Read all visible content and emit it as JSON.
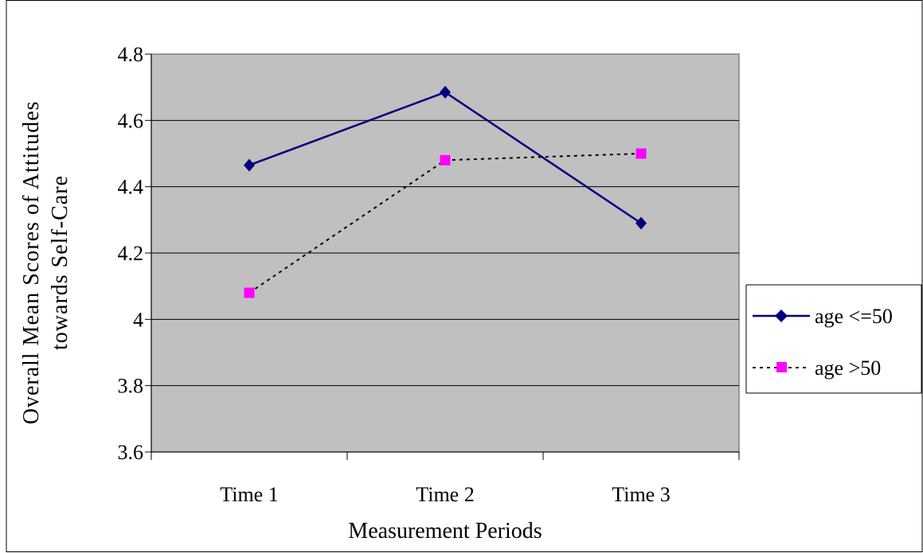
{
  "chart_data": {
    "type": "line",
    "title": "",
    "xlabel": "Measurement Periods",
    "ylabel_lines": [
      "Overall Mean Scores of Attitudes",
      "towards Self-Care"
    ],
    "categories": [
      "Time 1",
      "Time 2",
      "Time 3"
    ],
    "ylim": [
      3.6,
      4.8
    ],
    "yticks": [
      3.6,
      3.8,
      4,
      4.2,
      4.4,
      4.6,
      4.8
    ],
    "ytick_labels": [
      "3.6",
      "3.8",
      "4",
      "4.2",
      "4.4",
      "4.6",
      "4.8"
    ],
    "grid": true,
    "plot_background": "#c0c0c0",
    "legend_position": "right",
    "series": [
      {
        "name": "age <=50",
        "values": [
          4.465,
          4.685,
          4.29
        ],
        "color": "#000080",
        "line_style": "solid",
        "marker": "diamond"
      },
      {
        "name": "age >50",
        "values": [
          4.08,
          4.48,
          4.5
        ],
        "color": "#ff00ff",
        "line_color": "#000000",
        "line_style": "dotted",
        "marker": "square"
      }
    ]
  }
}
